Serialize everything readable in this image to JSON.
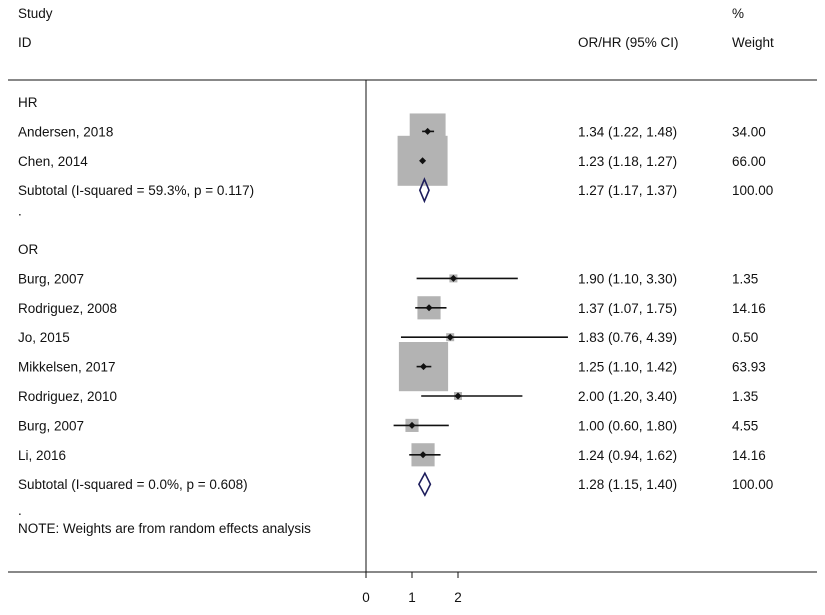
{
  "chart_data": {
    "type": "forest",
    "header": {
      "study_line1": "Study",
      "study_line2": "ID",
      "estimate": "OR/HR (95% CI)",
      "weight_line1": "%",
      "weight_line2": "Weight"
    },
    "xaxis": {
      "ticks": [
        0,
        1,
        2
      ],
      "range": [
        0,
        4.4
      ],
      "reference_line": 0
    },
    "groups": [
      {
        "label": "HR",
        "studies": [
          {
            "name": "Andersen, 2018",
            "est": 1.34,
            "lo": 1.22,
            "hi": 1.48,
            "text": "1.34 (1.22, 1.48)",
            "weight": "34.00",
            "w": 34.0
          },
          {
            "name": "Chen, 2014",
            "est": 1.23,
            "lo": 1.18,
            "hi": 1.27,
            "text": "1.23 (1.18, 1.27)",
            "weight": "66.00",
            "w": 66.0
          }
        ],
        "subtotal": {
          "label": "Subtotal  (I-squared = 59.3%, p = 0.117)",
          "est": 1.27,
          "lo": 1.17,
          "hi": 1.37,
          "text": "1.27 (1.17, 1.37)",
          "weight": "100.00"
        }
      },
      {
        "label": "OR",
        "studies": [
          {
            "name": "Burg, 2007",
            "est": 1.9,
            "lo": 1.1,
            "hi": 3.3,
            "text": "1.90 (1.10, 3.30)",
            "weight": "1.35",
            "w": 1.35
          },
          {
            "name": "Rodriguez, 2008",
            "est": 1.37,
            "lo": 1.07,
            "hi": 1.75,
            "text": "1.37 (1.07, 1.75)",
            "weight": "14.16",
            "w": 14.16
          },
          {
            "name": "Jo, 2015",
            "est": 1.83,
            "lo": 0.76,
            "hi": 4.39,
            "text": "1.83 (0.76, 4.39)",
            "weight": "0.50",
            "w": 0.5
          },
          {
            "name": "Mikkelsen, 2017",
            "est": 1.25,
            "lo": 1.1,
            "hi": 1.42,
            "text": "1.25 (1.10, 1.42)",
            "weight": "63.93",
            "w": 63.93
          },
          {
            "name": "Rodriguez, 2010",
            "est": 2.0,
            "lo": 1.2,
            "hi": 3.4,
            "text": "2.00 (1.20, 3.40)",
            "weight": "1.35",
            "w": 1.35
          },
          {
            "name": "Burg, 2007",
            "est": 1.0,
            "lo": 0.6,
            "hi": 1.8,
            "text": "1.00 (0.60, 1.80)",
            "weight": "4.55",
            "w": 4.55
          },
          {
            "name": "Li, 2016",
            "est": 1.24,
            "lo": 0.94,
            "hi": 1.62,
            "text": "1.24 (0.94, 1.62)",
            "weight": "14.16",
            "w": 14.16
          }
        ],
        "subtotal": {
          "label": "Subtotal  (I-squared = 0.0%, p = 0.608)",
          "est": 1.28,
          "lo": 1.15,
          "hi": 1.4,
          "text": "1.28 (1.15, 1.40)",
          "weight": "100.00"
        }
      }
    ],
    "separator": ".",
    "footnote": "NOTE: Weights are from random effects analysis",
    "colors": {
      "box": "#b3b3b3",
      "point": "#111111",
      "diamond": "#1d1d5c",
      "line": "#111111"
    }
  }
}
